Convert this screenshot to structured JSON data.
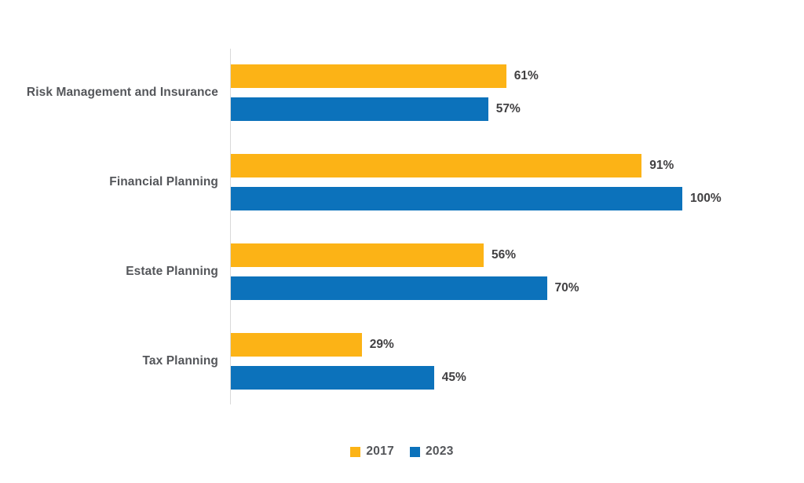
{
  "chart_data": {
    "type": "bar",
    "orientation": "horizontal",
    "title": "",
    "xlabel": "",
    "ylabel": "",
    "xlim": [
      0,
      100
    ],
    "grid": false,
    "legend_position": "bottom-center",
    "value_suffix": "%",
    "categories": [
      "Risk Management and Insurance",
      "Financial Planning",
      "Estate Planning",
      "Tax Planning"
    ],
    "series": [
      {
        "name": "2017",
        "color": "#FCB316",
        "values": [
          61,
          91,
          56,
          29
        ]
      },
      {
        "name": "2023",
        "color": "#0C72BB",
        "values": [
          57,
          100,
          70,
          45
        ]
      }
    ]
  },
  "style": {
    "axis_line_color": "#d9d9d9",
    "category_label_color": "#54565a",
    "value_label_color": "#414042",
    "background": "#ffffff"
  },
  "legend": {
    "items": [
      {
        "label": "2017",
        "color": "#FCB316"
      },
      {
        "label": "2023",
        "color": "#0C72BB"
      }
    ]
  }
}
